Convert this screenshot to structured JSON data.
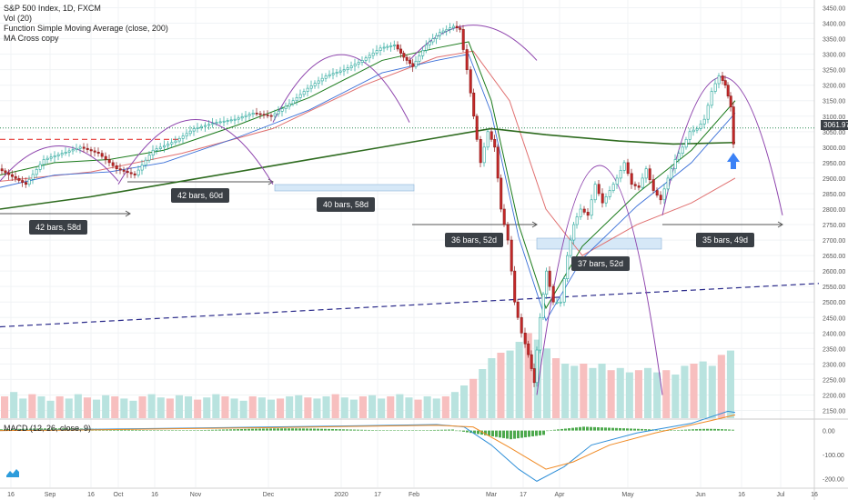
{
  "legend": {
    "symbol": "S&P 500 Index, 1D, FXCM",
    "volume": "Vol (20)",
    "function": "Function Simple Moving Average (close, 200)",
    "macross": "MA Cross copy"
  },
  "macd_label": "MACD (12, 26, close, 9)",
  "price_badge": "3061.97",
  "measurements": [
    {
      "label": "42 bars, 58d"
    },
    {
      "label": "42 bars, 60d"
    },
    {
      "label": "40 bars, 58d"
    },
    {
      "label": "36 bars, 52d"
    },
    {
      "label": "37 bars, 52d"
    },
    {
      "label": "35 bars, 49d"
    }
  ],
  "chart_data": {
    "type": "candlestick",
    "title": "S&P 500 Index, 1D, FXCM",
    "price_axis": {
      "ticks": [
        "3450.00",
        "3400.00",
        "3350.00",
        "3300.00",
        "3250.00",
        "3200.00",
        "3150.00",
        "3100.00",
        "3050.00",
        "3000.00",
        "2950.00",
        "2900.00",
        "2850.00",
        "2800.00",
        "2750.00",
        "2700.00",
        "2650.00",
        "2600.00",
        "2550.00",
        "2500.00",
        "2450.00",
        "2400.00",
        "2350.00",
        "2300.00",
        "2250.00",
        "2200.00",
        "2150.00"
      ],
      "range": [
        2125,
        3475
      ]
    },
    "macd_axis": {
      "ticks": [
        "0.00",
        "-100.00",
        "-200.00"
      ]
    },
    "time_axis": {
      "ticks": [
        "16",
        "Sep",
        "16",
        "Oct",
        "16",
        "Nov",
        "Dec",
        "2020",
        "17",
        "Feb",
        "Mar",
        "17",
        "Apr",
        "May",
        "Jun",
        "16",
        "Jul",
        "16"
      ]
    },
    "price_path": [
      {
        "x": 0,
        "v": 2930
      },
      {
        "x": 30,
        "v": 2880
      },
      {
        "x": 50,
        "v": 2960
      },
      {
        "x": 70,
        "v": 2980
      },
      {
        "x": 90,
        "v": 3000
      },
      {
        "x": 110,
        "v": 2980
      },
      {
        "x": 130,
        "v": 2930
      },
      {
        "x": 150,
        "v": 2910
      },
      {
        "x": 170,
        "v": 2990
      },
      {
        "x": 195,
        "v": 3020
      },
      {
        "x": 215,
        "v": 3060
      },
      {
        "x": 240,
        "v": 3080
      },
      {
        "x": 260,
        "v": 3090
      },
      {
        "x": 280,
        "v": 3110
      },
      {
        "x": 300,
        "v": 3100
      },
      {
        "x": 320,
        "v": 3140
      },
      {
        "x": 340,
        "v": 3190
      },
      {
        "x": 360,
        "v": 3230
      },
      {
        "x": 380,
        "v": 3250
      },
      {
        "x": 400,
        "v": 3280
      },
      {
        "x": 420,
        "v": 3320
      },
      {
        "x": 435,
        "v": 3330
      },
      {
        "x": 445,
        "v": 3290
      },
      {
        "x": 455,
        "v": 3260
      },
      {
        "x": 470,
        "v": 3330
      },
      {
        "x": 485,
        "v": 3370
      },
      {
        "x": 500,
        "v": 3390
      },
      {
        "x": 507,
        "v": 3380
      },
      {
        "x": 515,
        "v": 3250
      },
      {
        "x": 522,
        "v": 3100
      },
      {
        "x": 530,
        "v": 2950
      },
      {
        "x": 538,
        "v": 3050
      },
      {
        "x": 545,
        "v": 3000
      },
      {
        "x": 552,
        "v": 2800
      },
      {
        "x": 560,
        "v": 2700
      },
      {
        "x": 567,
        "v": 2500
      },
      {
        "x": 575,
        "v": 2400
      },
      {
        "x": 582,
        "v": 2330
      },
      {
        "x": 588,
        "v": 2240
      },
      {
        "x": 595,
        "v": 2450
      },
      {
        "x": 602,
        "v": 2600
      },
      {
        "x": 610,
        "v": 2500
      },
      {
        "x": 618,
        "v": 2500
      },
      {
        "x": 625,
        "v": 2650
      },
      {
        "x": 632,
        "v": 2750
      },
      {
        "x": 640,
        "v": 2800
      },
      {
        "x": 648,
        "v": 2780
      },
      {
        "x": 656,
        "v": 2880
      },
      {
        "x": 664,
        "v": 2820
      },
      {
        "x": 672,
        "v": 2860
      },
      {
        "x": 680,
        "v": 2900
      },
      {
        "x": 688,
        "v": 2950
      },
      {
        "x": 696,
        "v": 2880
      },
      {
        "x": 704,
        "v": 2870
      },
      {
        "x": 712,
        "v": 2930
      },
      {
        "x": 720,
        "v": 2860
      },
      {
        "x": 728,
        "v": 2830
      },
      {
        "x": 736,
        "v": 2900
      },
      {
        "x": 744,
        "v": 2960
      },
      {
        "x": 752,
        "v": 3000
      },
      {
        "x": 760,
        "v": 3050
      },
      {
        "x": 768,
        "v": 3060
      },
      {
        "x": 776,
        "v": 3090
      },
      {
        "x": 784,
        "v": 3180
      },
      {
        "x": 792,
        "v": 3230
      },
      {
        "x": 798,
        "v": 3200
      },
      {
        "x": 804,
        "v": 3130
      },
      {
        "x": 808,
        "v": 3010
      }
    ],
    "sma200": [
      {
        "x": 0,
        "v": 2800
      },
      {
        "x": 100,
        "v": 2840
      },
      {
        "x": 200,
        "v": 2890
      },
      {
        "x": 300,
        "v": 2940
      },
      {
        "x": 400,
        "v": 2990
      },
      {
        "x": 480,
        "v": 3030
      },
      {
        "x": 540,
        "v": 3060
      },
      {
        "x": 600,
        "v": 3040
      },
      {
        "x": 680,
        "v": 3020
      },
      {
        "x": 740,
        "v": 3010
      },
      {
        "x": 808,
        "v": 3015
      }
    ],
    "ma_fast": [
      {
        "x": 0,
        "v": 2910
      },
      {
        "x": 60,
        "v": 2950
      },
      {
        "x": 120,
        "v": 2960
      },
      {
        "x": 180,
        "v": 2990
      },
      {
        "x": 260,
        "v": 3070
      },
      {
        "x": 340,
        "v": 3160
      },
      {
        "x": 420,
        "v": 3280
      },
      {
        "x": 480,
        "v": 3320
      },
      {
        "x": 515,
        "v": 3340
      },
      {
        "x": 540,
        "v": 3150
      },
      {
        "x": 570,
        "v": 2750
      },
      {
        "x": 600,
        "v": 2480
      },
      {
        "x": 640,
        "v": 2680
      },
      {
        "x": 700,
        "v": 2850
      },
      {
        "x": 760,
        "v": 2990
      },
      {
        "x": 808,
        "v": 3150
      }
    ],
    "ma_slow": [
      {
        "x": 0,
        "v": 2890
      },
      {
        "x": 100,
        "v": 2920
      },
      {
        "x": 200,
        "v": 2980
      },
      {
        "x": 300,
        "v": 3060
      },
      {
        "x": 400,
        "v": 3200
      },
      {
        "x": 480,
        "v": 3290
      },
      {
        "x": 520,
        "v": 3310
      },
      {
        "x": 560,
        "v": 3150
      },
      {
        "x": 600,
        "v": 2800
      },
      {
        "x": 640,
        "v": 2650
      },
      {
        "x": 700,
        "v": 2750
      },
      {
        "x": 760,
        "v": 2820
      },
      {
        "x": 808,
        "v": 2900
      }
    ],
    "resistance_level": 3061.97,
    "red_dashed_level": 3025,
    "trendline": {
      "from": {
        "x": 0,
        "v": 2420
      },
      "to": {
        "x": 900,
        "v": 2560
      }
    },
    "arcs": [
      {
        "x1": 0,
        "x2": 130,
        "base": 2890,
        "peak": 3010
      },
      {
        "x1": 130,
        "x2": 300,
        "base": 2880,
        "peak": 3100
      },
      {
        "x1": 300,
        "x2": 450,
        "base": 3080,
        "peak": 3310
      },
      {
        "x1": 450,
        "x2": 590,
        "base": 3280,
        "peak": 3400
      },
      {
        "x1": 590,
        "x2": 728,
        "base": 2200,
        "peak": 2980
      },
      {
        "x1": 728,
        "x2": 860,
        "base": 2780,
        "peak": 3250
      }
    ],
    "volume": [
      0.2,
      0.24,
      0.18,
      0.22,
      0.2,
      0.16,
      0.2,
      0.18,
      0.22,
      0.19,
      0.17,
      0.21,
      0.2,
      0.18,
      0.16,
      0.2,
      0.22,
      0.19,
      0.18,
      0.21,
      0.2,
      0.17,
      0.19,
      0.22,
      0.2,
      0.18,
      0.16,
      0.2,
      0.19,
      0.17,
      0.18,
      0.2,
      0.21,
      0.19,
      0.18,
      0.2,
      0.22,
      0.19,
      0.17,
      0.2,
      0.21,
      0.18,
      0.2,
      0.22,
      0.19,
      0.17,
      0.2,
      0.18,
      0.2,
      0.24,
      0.3,
      0.36,
      0.45,
      0.55,
      0.6,
      0.62,
      0.7,
      0.78,
      0.72,
      0.64,
      0.55,
      0.5,
      0.48,
      0.5,
      0.46,
      0.5,
      0.44,
      0.46,
      0.42,
      0.44,
      0.46,
      0.42,
      0.44,
      0.4,
      0.48,
      0.5,
      0.52,
      0.48,
      0.58,
      0.62
    ],
    "macd_line": [
      {
        "x": 0,
        "v": 0
      },
      {
        "x": 100,
        "v": 5
      },
      {
        "x": 200,
        "v": 10
      },
      {
        "x": 300,
        "v": 15
      },
      {
        "x": 400,
        "v": 20
      },
      {
        "x": 480,
        "v": 25
      },
      {
        "x": 510,
        "v": 15
      },
      {
        "x": 540,
        "v": -60
      },
      {
        "x": 570,
        "v": -160
      },
      {
        "x": 590,
        "v": -210
      },
      {
        "x": 620,
        "v": -150
      },
      {
        "x": 650,
        "v": -60
      },
      {
        "x": 700,
        "v": -10
      },
      {
        "x": 760,
        "v": 30
      },
      {
        "x": 800,
        "v": 80
      },
      {
        "x": 808,
        "v": 75
      }
    ],
    "signal_line": [
      {
        "x": 0,
        "v": 0
      },
      {
        "x": 100,
        "v": 3
      },
      {
        "x": 200,
        "v": 8
      },
      {
        "x": 300,
        "v": 12
      },
      {
        "x": 400,
        "v": 18
      },
      {
        "x": 480,
        "v": 22
      },
      {
        "x": 520,
        "v": 15
      },
      {
        "x": 560,
        "v": -70
      },
      {
        "x": 600,
        "v": -160
      },
      {
        "x": 630,
        "v": -130
      },
      {
        "x": 670,
        "v": -60
      },
      {
        "x": 720,
        "v": -10
      },
      {
        "x": 780,
        "v": 40
      },
      {
        "x": 808,
        "v": 65
      }
    ]
  },
  "colors": {
    "up": "#26a69a",
    "down": "#ef5350",
    "candle_dark": "#8b1a1a",
    "sma200": "#2e6b1f",
    "arc": "#8e44ad",
    "ma_fast": "#1a7a1a",
    "ma_slow": "#e07070",
    "ma_blue": "#3a6fd8",
    "trend": "#2a2a8a",
    "resistance": "#2e8b57"
  }
}
